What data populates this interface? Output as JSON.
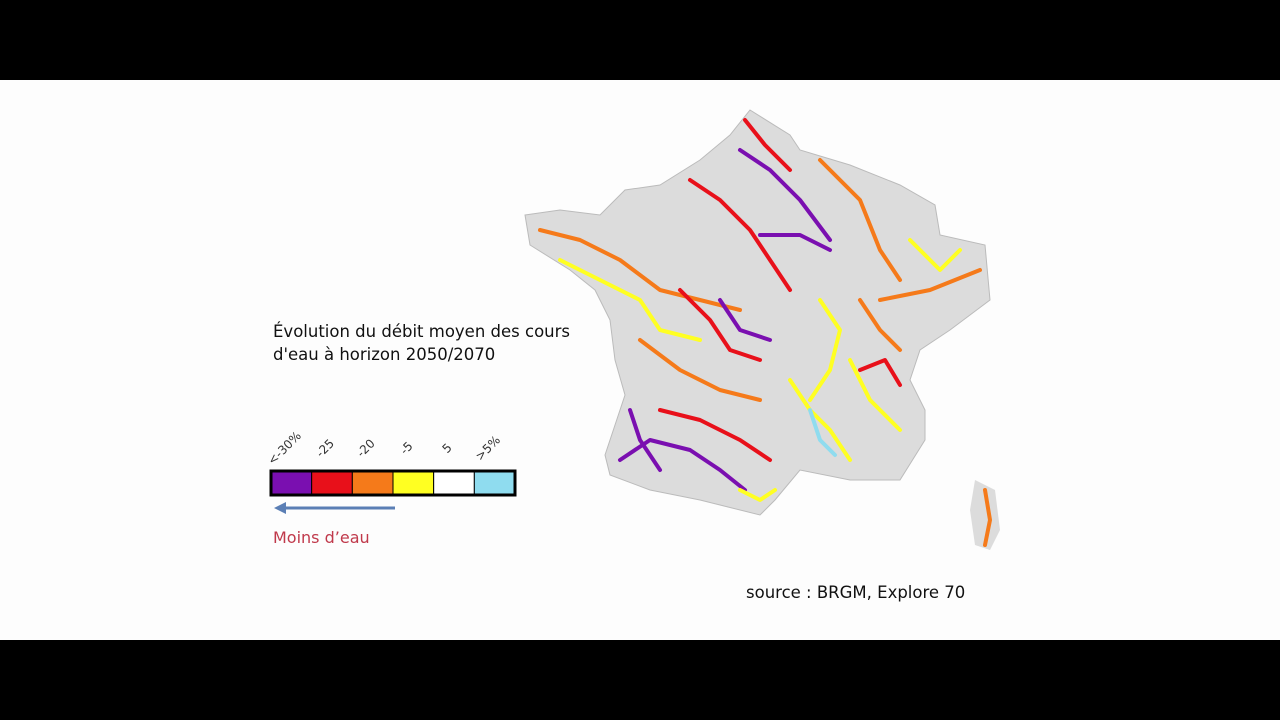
{
  "title": "Évolution du débit moyen des cours d'eau à horizon 2050/2070",
  "legend": {
    "items": [
      {
        "label": "<-30%",
        "color": "#7a0fb0"
      },
      {
        "label": "-25",
        "color": "#e8101a"
      },
      {
        "label": "-20",
        "color": "#f57a1a"
      },
      {
        "label": "-5",
        "color": "#ffff22"
      },
      {
        "label": "5",
        "color": "#ffffff"
      },
      {
        "label": ">5%",
        "color": "#8fdcef"
      }
    ],
    "arrow_label": "Moins d’eau"
  },
  "source": "source : BRGM, Explore 70"
}
